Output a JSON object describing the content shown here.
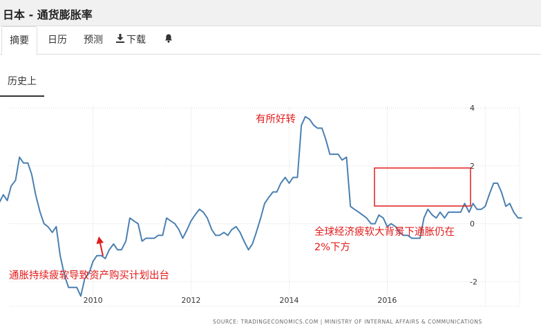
{
  "page": {
    "title": "日本 - 通货膨胀率"
  },
  "tabs": [
    {
      "label": "摘要",
      "icon": ""
    },
    {
      "label": "日历",
      "icon": ""
    },
    {
      "label": "预测",
      "icon": ""
    },
    {
      "label": "下载",
      "icon": "download-icon"
    },
    {
      "label": "",
      "icon": "bell-icon"
    }
  ],
  "section_tab": {
    "label": "历史上"
  },
  "colors": {
    "line": "#4a7fb0",
    "annotation": "#e21b1b",
    "grid": "#d7d7d7"
  },
  "chart_data": {
    "type": "line",
    "xlabel": "",
    "ylabel": "",
    "x_ticks": [
      "2010",
      "2012",
      "2014",
      "2016"
    ],
    "y_ticks": [
      -2,
      0,
      2,
      4
    ],
    "xlim": [
      2008.3,
      2018.7
    ],
    "ylim": [
      -2.85,
      4.05
    ],
    "y_axis_position": "right",
    "grid": "dotted",
    "series": [
      {
        "x": [
          2008.0,
          2008.08,
          2008.17,
          2008.25,
          2008.33,
          2008.42,
          2008.5,
          2008.58,
          2008.67,
          2008.75,
          2008.83,
          2008.92,
          2009.0,
          2009.08,
          2009.17,
          2009.25,
          2009.33,
          2009.42,
          2009.5,
          2009.58,
          2009.67,
          2009.75,
          2009.83,
          2009.92,
          2010.0,
          2010.08,
          2010.17,
          2010.25,
          2010.33,
          2010.42,
          2010.5,
          2010.58,
          2010.67,
          2010.75,
          2010.83,
          2010.92,
          2011.0,
          2011.08,
          2011.17,
          2011.25,
          2011.33,
          2011.42,
          2011.5,
          2011.58,
          2011.67,
          2011.75,
          2011.83,
          2011.92,
          2012.0,
          2012.08,
          2012.17,
          2012.25,
          2012.33,
          2012.42,
          2012.5,
          2012.58,
          2012.67,
          2012.75,
          2012.83,
          2012.92,
          2013.0,
          2013.08,
          2013.17,
          2013.25,
          2013.33,
          2013.42,
          2013.5,
          2013.58,
          2013.67,
          2013.75,
          2013.83,
          2013.92,
          2014.0,
          2014.08,
          2014.17,
          2014.25,
          2014.33,
          2014.42,
          2014.5,
          2014.58,
          2014.67,
          2014.75,
          2014.83,
          2014.92,
          2015.0,
          2015.08,
          2015.17,
          2015.25,
          2015.33,
          2015.42,
          2015.5,
          2015.58,
          2015.67,
          2015.75,
          2015.83,
          2015.92,
          2016.0,
          2016.08,
          2016.17,
          2016.25,
          2016.33,
          2016.42,
          2016.5,
          2016.58,
          2016.67,
          2016.75,
          2016.83,
          2016.92,
          2017.0,
          2017.08,
          2017.17,
          2017.25,
          2017.33,
          2017.42,
          2017.5,
          2017.58,
          2017.67,
          2017.75,
          2017.83,
          2017.92,
          2018.0,
          2018.08,
          2018.17,
          2018.25,
          2018.33,
          2018.42,
          2018.5,
          2018.58,
          2018.67,
          2018.75
        ],
        "y": [
          0.7,
          0.7,
          1.0,
          0.8,
          1.3,
          1.5,
          2.3,
          2.1,
          2.1,
          1.7,
          1.0,
          0.4,
          0.0,
          -0.1,
          -0.3,
          -0.1,
          -1.1,
          -1.8,
          -2.2,
          -2.2,
          -2.2,
          -2.5,
          -1.9,
          -1.7,
          -1.3,
          -1.1,
          -1.1,
          -1.2,
          -0.9,
          -0.7,
          -0.9,
          -0.9,
          -0.6,
          0.2,
          0.1,
          0.0,
          -0.6,
          -0.5,
          -0.5,
          -0.5,
          -0.4,
          -0.4,
          0.2,
          0.1,
          0.0,
          -0.2,
          -0.5,
          -0.2,
          0.1,
          0.3,
          0.5,
          0.4,
          0.2,
          -0.2,
          -0.4,
          -0.4,
          -0.3,
          -0.4,
          -0.2,
          -0.1,
          -0.3,
          -0.6,
          -0.9,
          -0.7,
          -0.3,
          0.2,
          0.7,
          0.9,
          1.1,
          1.1,
          1.4,
          1.6,
          1.4,
          1.6,
          1.6,
          3.4,
          3.7,
          3.6,
          3.4,
          3.3,
          3.3,
          2.9,
          2.4,
          2.4,
          2.4,
          2.2,
          2.3,
          0.6,
          0.5,
          0.4,
          0.3,
          0.2,
          0.0,
          0.0,
          0.3,
          0.2,
          -0.1,
          0.0,
          -0.1,
          -0.3,
          -0.4,
          -0.4,
          -0.5,
          -0.5,
          -0.5,
          0.2,
          0.5,
          0.3,
          0.2,
          0.4,
          0.2,
          0.4,
          0.4,
          0.4,
          0.4,
          0.7,
          0.4,
          0.7,
          0.5,
          0.5,
          0.6,
          1.0,
          1.4,
          1.4,
          1.1,
          0.6,
          0.7,
          0.4,
          0.2,
          0.2
        ]
      }
    ],
    "annotations": [
      {
        "text": "有所好转"
      },
      {
        "text": "全球经济疲软大背景下通胀仍在"
      },
      {
        "text": "2%下方"
      },
      {
        "text": "通胀持续疲软导致资产购买计划出台"
      }
    ]
  },
  "source": "SOURCE: TRADINGECONOMICS.COM | MINISTRY OF INTERNAL AFFAIRS & COMMUNICATIONS"
}
